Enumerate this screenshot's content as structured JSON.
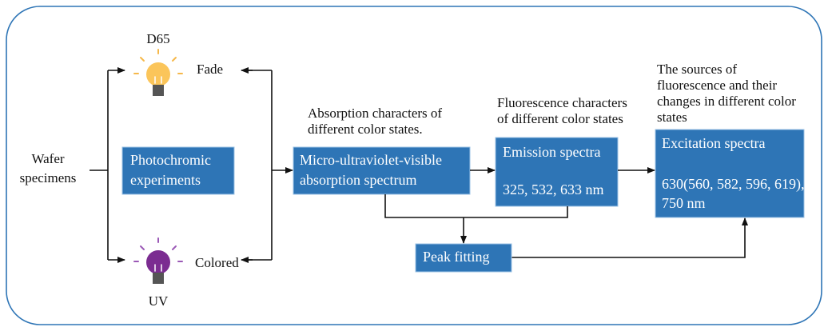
{
  "diagram": {
    "start": [
      "Wafer",
      "specimens"
    ],
    "lights": {
      "top": "D65",
      "bottom": "UV"
    },
    "states": {
      "fade": "Fade",
      "colored": "Colored"
    },
    "boxes": {
      "photochromic": [
        "Photochromic",
        "experiments"
      ],
      "absorption": [
        "Micro-ultraviolet-visible",
        "absorption spectrum"
      ],
      "emission": [
        "Emission spectra",
        "325, 532, 633 nm"
      ],
      "excitation": [
        "Excitation spectra",
        "630(560, 582, 596, 619),",
        "750 nm"
      ],
      "peak": "Peak fitting"
    },
    "notes": {
      "absorption": [
        "Absorption characters of",
        "different color states."
      ],
      "emission": [
        "Fluorescence characters",
        "of different color states"
      ],
      "excitation": [
        "The sources of",
        "fluorescence and their",
        "changes in different color",
        "states"
      ]
    }
  }
}
